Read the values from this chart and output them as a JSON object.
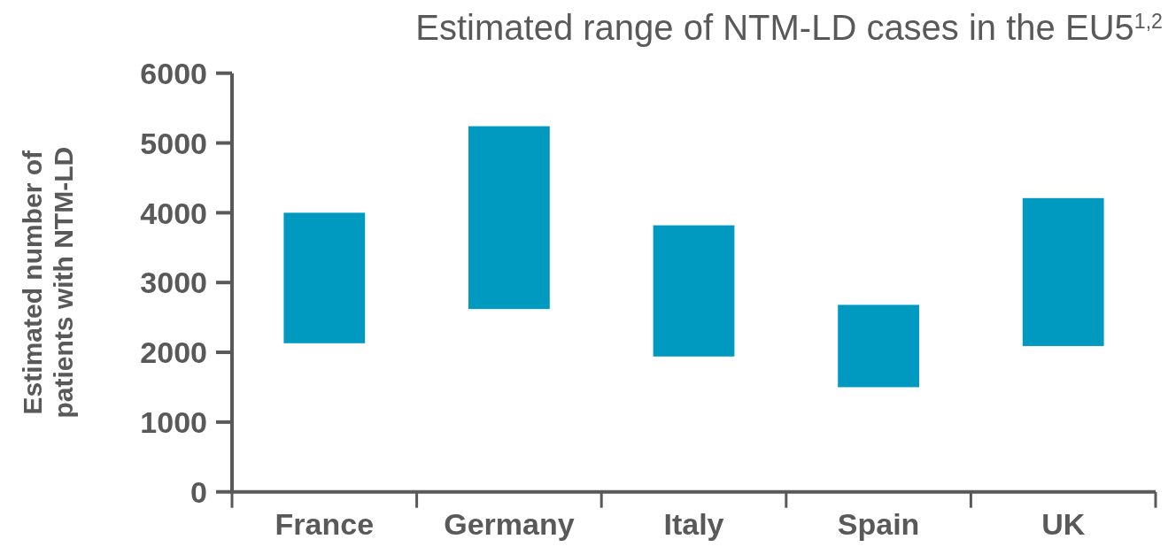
{
  "chart_data": {
    "type": "bar",
    "title": "Estimated range of NTM-LD cases in the EU5$^{1,2}$",
    "ylabel": "Estimated number of patients with NTM-LD",
    "categories": [
      "France",
      "Germany",
      "Italy",
      "Spain",
      "UK"
    ],
    "base": [
      2130,
      2620,
      1940,
      1500,
      2090
    ],
    "values": [
      1870,
      2620,
      1880,
      1180,
      2120
    ],
    "color": "#0099c0",
    "ylim": [
      0,
      6000
    ],
    "yticks": [
      0,
      1000,
      2000,
      3000,
      4000,
      5000,
      6000
    ],
    "grid": false
  }
}
